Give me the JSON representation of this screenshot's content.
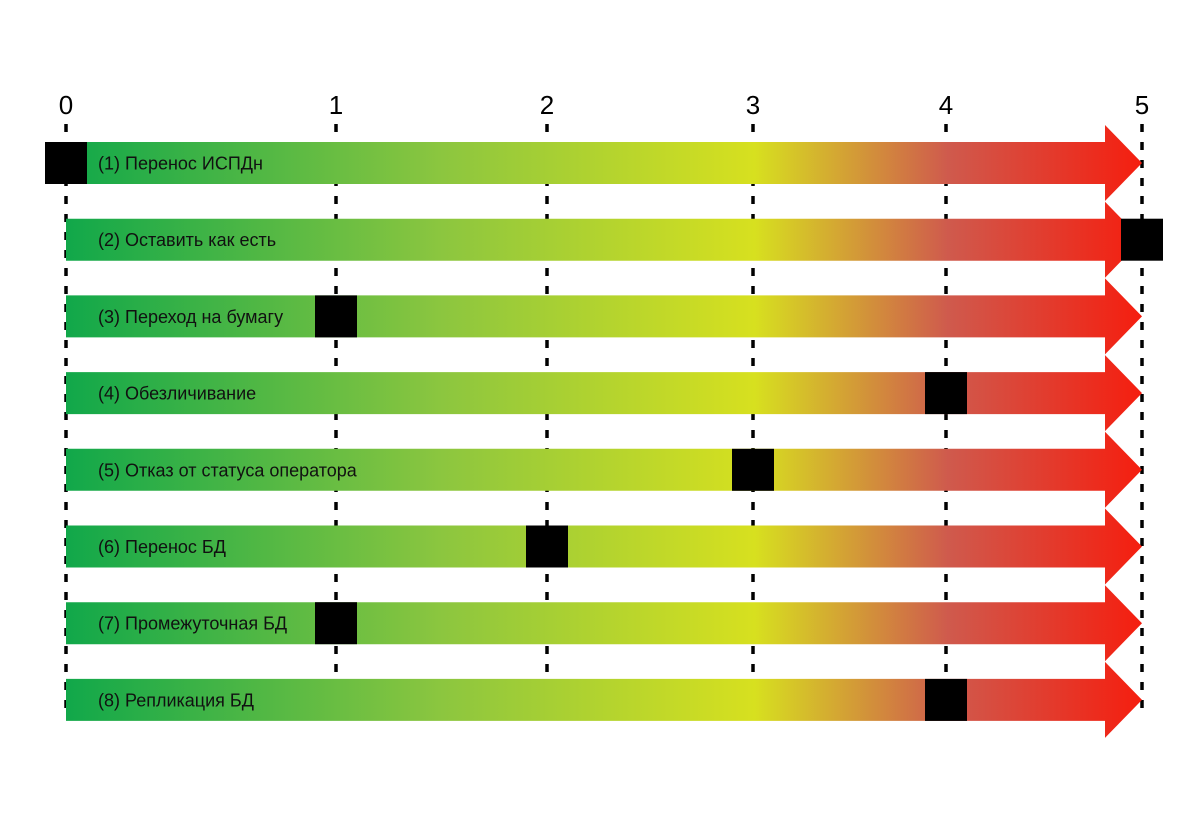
{
  "chart_data": {
    "type": "bar",
    "title": "",
    "xlabel": "",
    "ylabel": "",
    "xlim": [
      0,
      5
    ],
    "ticks": [
      "0",
      "1",
      "2",
      "3",
      "4",
      "5"
    ],
    "grid": true,
    "categories": [
      "(1) Перенос ИСПДн",
      "(2) Оставить как есть",
      "(3) Переход на бумагу",
      "(4) Обезличивание",
      "(5) Отказ от статуса оператора",
      "(6) Перенос БД",
      "(7) Промежуточная БД",
      "(8) Репликация БД"
    ],
    "values": [
      0,
      5,
      1,
      4,
      3,
      2,
      1,
      4
    ],
    "gradient_colors": [
      "#11a84a",
      "#8cc63f",
      "#d7e01f",
      "#cf5a4d",
      "#f51e0f"
    ],
    "marker_color": "#000000"
  }
}
